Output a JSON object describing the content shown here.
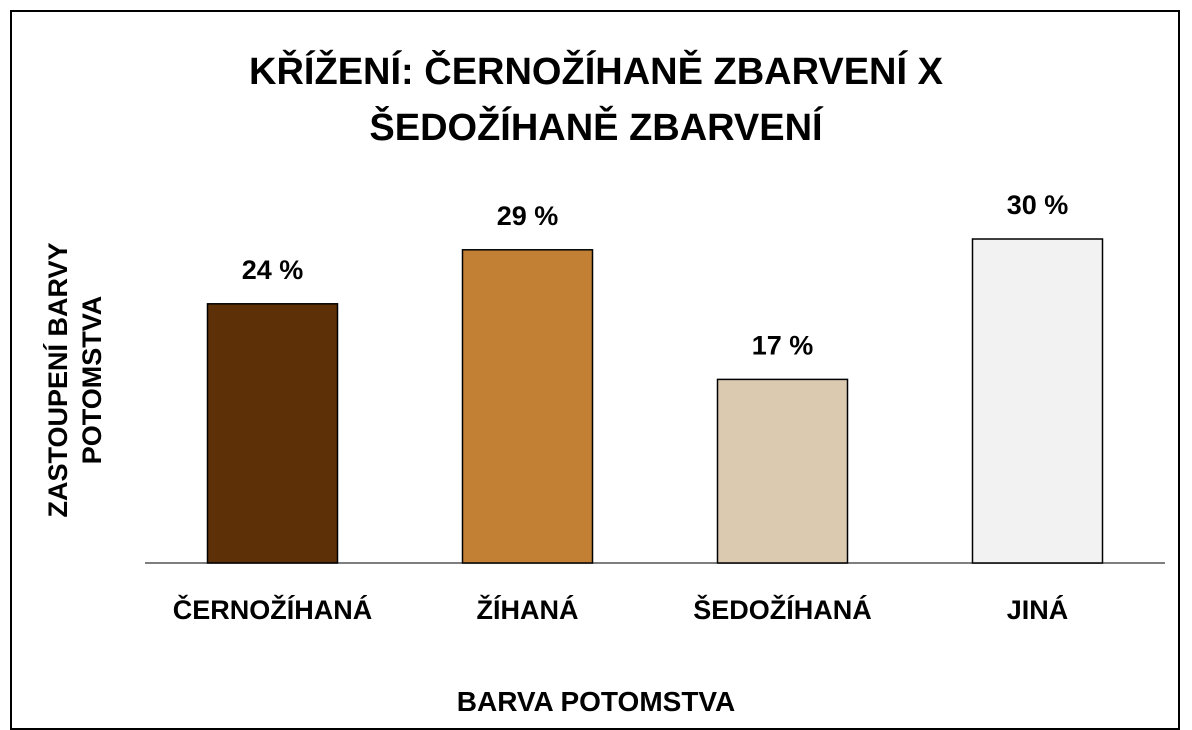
{
  "chart_data": {
    "type": "bar",
    "title": "KŘÍŽENÍ: ČERNOŽÍHANĚ ZBARVENÍ X\nŠEDOŽÍHANĚ ZBARVENÍ",
    "ylabel": "ZASTOUPENÍ BARVY\nPOTOMSTVA",
    "xlabel": "BARVA POTOMSTVA",
    "categories": [
      "ČERNOŽÍHANÁ",
      "ŽÍHANÁ",
      "ŠEDOŽÍHANÁ",
      "JINÁ"
    ],
    "values": [
      24,
      29,
      17,
      30
    ],
    "value_labels": [
      "24 %",
      "29 %",
      "17 %",
      "30 %"
    ],
    "colors": [
      "#5e3008",
      "#c28035",
      "#dccab0",
      "#f2f2f2"
    ],
    "ylim": [
      0,
      35
    ]
  }
}
